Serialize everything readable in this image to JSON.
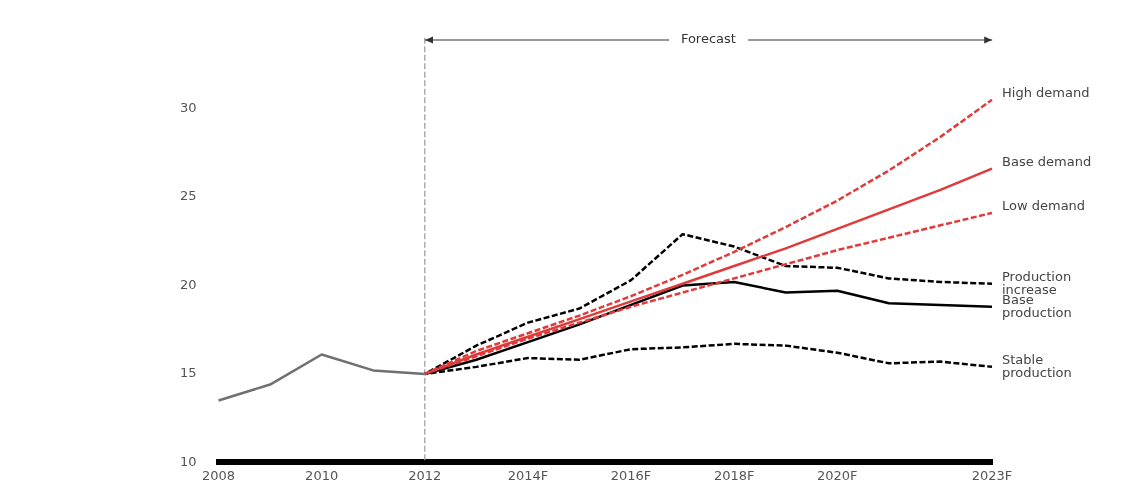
{
  "chart_data": {
    "type": "line",
    "categories": [
      "2008",
      null,
      "2010",
      null,
      "2012",
      null,
      "2014F",
      null,
      "2016F",
      null,
      "2018F",
      null,
      "2020F",
      null,
      null,
      "2023F"
    ],
    "ylim": [
      10,
      34
    ],
    "yticks": [
      10,
      15,
      20,
      25,
      30
    ],
    "marker": "none",
    "legend": false,
    "annotations": [
      {
        "text": "Forecast",
        "x": "2012"
      }
    ],
    "ref_lines": [
      {
        "axis": "x",
        "value": "2012",
        "color": "#9a9a9a",
        "line_style": "dashed"
      }
    ],
    "series": [
      {
        "color": "#707070",
        "line_style": "solid",
        "values": [
          13.5,
          14.4,
          16.1,
          15.2,
          15.0,
          null,
          null,
          null,
          null,
          null,
          null,
          null,
          null,
          null,
          null,
          null
        ]
      },
      {
        "name": "High demand",
        "color": "#e03a3a",
        "line_style": "dashed",
        "values": [
          null,
          null,
          null,
          null,
          15.0,
          16.3,
          17.3,
          18.3,
          19.4,
          20.6,
          21.9,
          23.3,
          24.8,
          26.5,
          28.4,
          30.5
        ]
      },
      {
        "name": "Base demand",
        "color": "#e03a3a",
        "line_style": "solid",
        "values": [
          null,
          null,
          null,
          null,
          15.0,
          16.1,
          17.1,
          18.1,
          19.1,
          20.1,
          21.1,
          22.1,
          23.2,
          24.3,
          25.4,
          26.6
        ]
      },
      {
        "name": "Low demand",
        "color": "#e03a3a",
        "line_style": "dashed",
        "values": [
          null,
          null,
          null,
          null,
          15.0,
          16.0,
          17.0,
          17.9,
          18.8,
          19.6,
          20.4,
          21.2,
          22.0,
          22.7,
          23.4,
          24.1
        ]
      },
      {
        "name": "Production increase",
        "color": "#000000",
        "line_style": "dashed",
        "values": [
          null,
          null,
          null,
          null,
          15.0,
          16.6,
          17.9,
          18.7,
          20.3,
          22.9,
          22.2,
          21.1,
          21.0,
          20.4,
          20.2,
          20.1
        ]
      },
      {
        "name": "Base production",
        "color": "#000000",
        "line_style": "solid",
        "values": [
          null,
          null,
          null,
          null,
          15.0,
          15.8,
          16.8,
          17.8,
          18.9,
          20.0,
          20.2,
          19.6,
          19.7,
          19.0,
          18.9,
          18.8
        ]
      },
      {
        "name": "Stable production",
        "color": "#000000",
        "line_style": "dashed",
        "values": [
          null,
          null,
          null,
          null,
          15.0,
          15.4,
          15.9,
          15.8,
          16.4,
          16.5,
          16.7,
          16.6,
          16.2,
          15.6,
          15.7,
          15.4
        ]
      }
    ]
  }
}
